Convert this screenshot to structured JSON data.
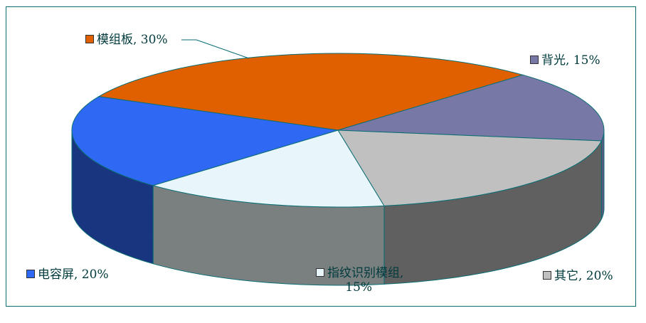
{
  "chart_data": {
    "type": "pie",
    "style": "3d-exploded-view",
    "slices": [
      {
        "label": "模组板",
        "value": 30,
        "display": "30%",
        "color": "#e06000",
        "side_color": "#e06000"
      },
      {
        "label": "背光",
        "value": 15,
        "display": "15%",
        "color": "#7878a6",
        "side_color": "#5a5a80"
      },
      {
        "label": "其它",
        "value": 20,
        "display": "20%",
        "color": "#c0c0c0",
        "side_color": "#606060"
      },
      {
        "label": "指纹识别模组",
        "value": 15,
        "display": "15%",
        "color": "#e8f6fc",
        "side_color": "#7a8080"
      },
      {
        "label": "电容屏",
        "value": 20,
        "display": "20%",
        "color": "#2f68f2",
        "side_color": "#1a3580"
      }
    ]
  },
  "labels": {
    "mozu": "模组板, 30%",
    "beiguang": "背光, 15%",
    "qita": "其它, 20%",
    "zhiwen_line1": "指纹识别模组,",
    "zhiwen_line2": "15%",
    "dianrong": "电容屏, 20%"
  }
}
